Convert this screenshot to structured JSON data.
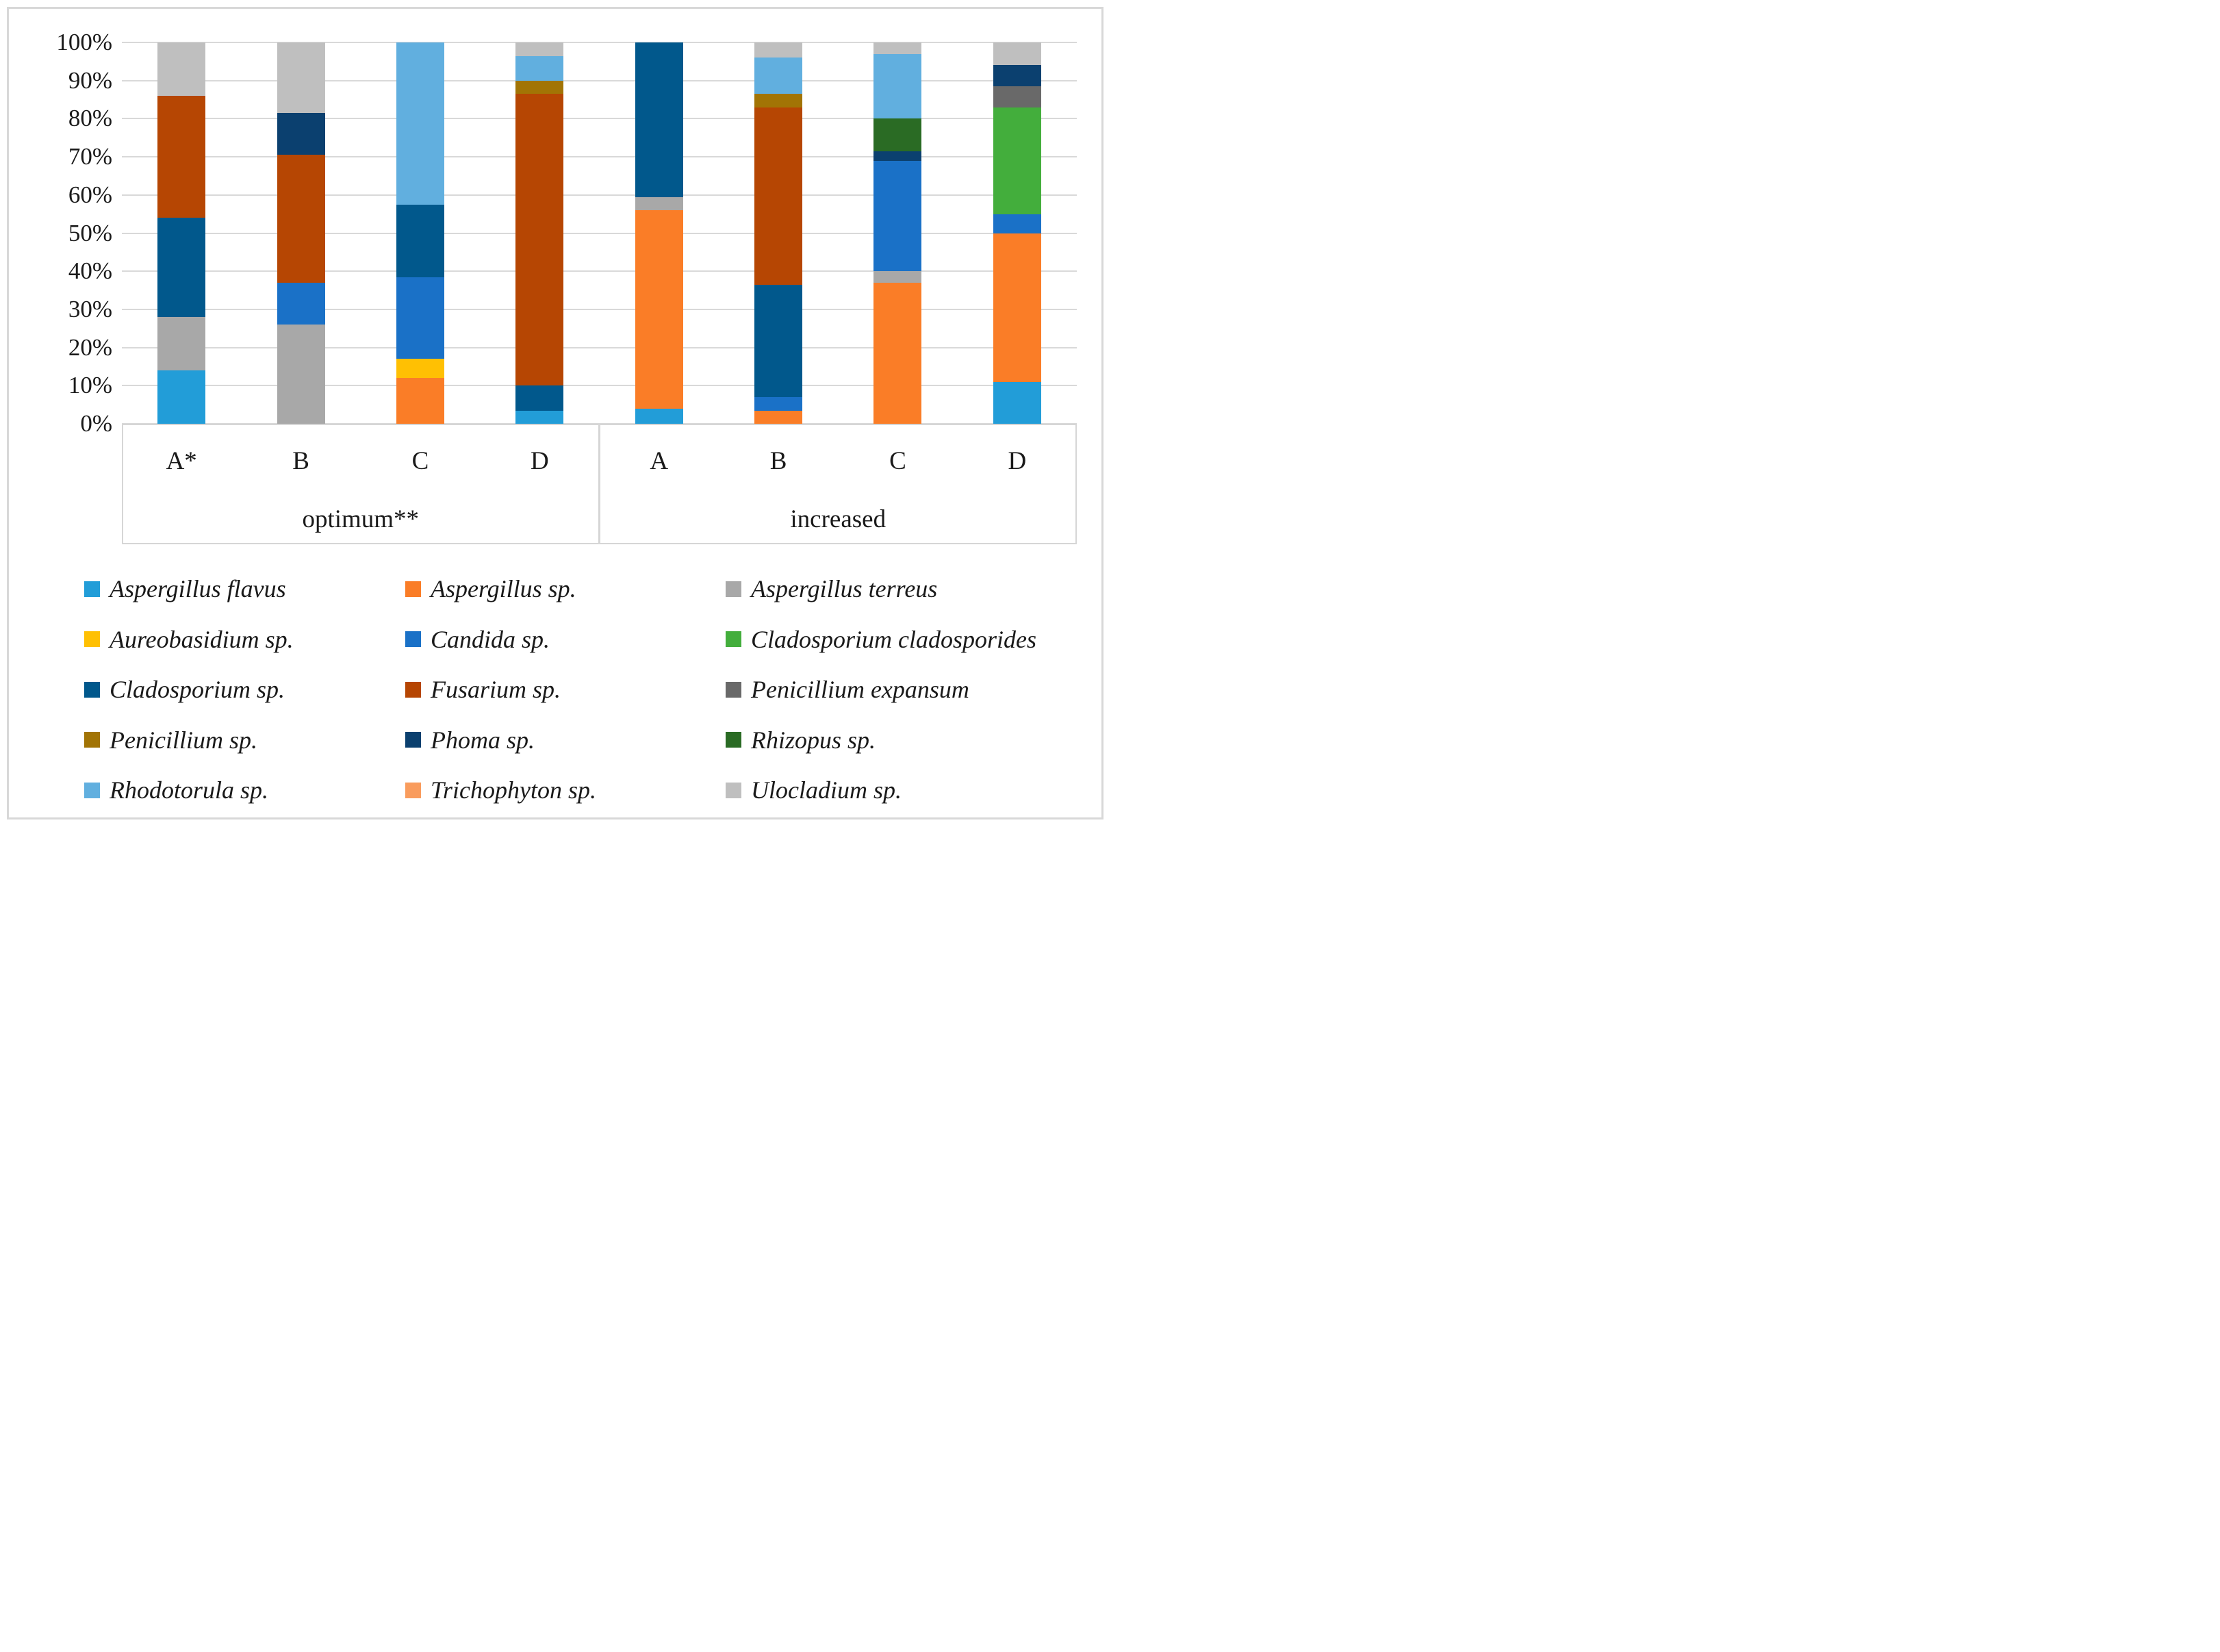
{
  "chart_data": {
    "type": "bar",
    "variant": "100%-stacked-column",
    "title": "",
    "xlabel": "",
    "ylabel": "",
    "ylim": [
      0,
      100
    ],
    "grid": true,
    "legend_position": "bottom",
    "y_ticks": [
      "100%",
      "90%",
      "80%",
      "70%",
      "60%",
      "50%",
      "40%",
      "30%",
      "20%",
      "10%",
      "0%"
    ],
    "groups": [
      {
        "label": "optimum**",
        "categories": [
          "A*",
          "B",
          "C",
          "D"
        ]
      },
      {
        "label": "increased",
        "categories": [
          "A",
          "B",
          "C",
          "D"
        ]
      }
    ],
    "series": [
      {
        "name": "Aspergillus flavus",
        "color": "#229DD8"
      },
      {
        "name": "Aspergillus sp.",
        "color": "#FA7D27"
      },
      {
        "name": "Aspergillus terreus",
        "color": "#A8A8A8"
      },
      {
        "name": "Aureobasidium sp.",
        "color": "#FFC003"
      },
      {
        "name": "Candida sp.",
        "color": "#1A71C7"
      },
      {
        "name": "Cladosporium cladosporides",
        "color": "#43AE3C"
      },
      {
        "name": "Cladosporium sp.",
        "color": "#01588C"
      },
      {
        "name": "Fusarium sp.",
        "color": "#B64603"
      },
      {
        "name": "Penicillium expansum",
        "color": "#696969"
      },
      {
        "name": "Penicillium sp.",
        "color": "#A27405"
      },
      {
        "name": "Phoma sp.",
        "color": "#0B406F"
      },
      {
        "name": "Rhizopus sp.",
        "color": "#2A6B24"
      },
      {
        "name": "Rhodotorula sp.",
        "color": "#61AFDF"
      },
      {
        "name": "Trichophyton sp.",
        "color": "#F99C5D"
      },
      {
        "name": "Ulocladium sp.",
        "color": "#BFBFBF"
      }
    ],
    "bars": [
      {
        "group": "optimum**",
        "category": "A*",
        "segments": {
          "Aspergillus flavus": 14,
          "Aspergillus terreus": 14,
          "Cladosporium sp.": 26,
          "Fusarium sp.": 32,
          "Ulocladium sp.": 14
        }
      },
      {
        "group": "optimum**",
        "category": "B",
        "segments": {
          "Aspergillus terreus": 26,
          "Candida sp.": 11,
          "Fusarium sp.": 33.5,
          "Phoma sp.": 11,
          "Ulocladium sp.": 18.5
        }
      },
      {
        "group": "optimum**",
        "category": "C",
        "segments": {
          "Aspergillus sp.": 12,
          "Aureobasidium sp.": 5,
          "Candida sp.": 21.5,
          "Cladosporium sp.": 19,
          "Rhodotorula sp.": 42.5
        }
      },
      {
        "group": "optimum**",
        "category": "D",
        "segments": {
          "Aspergillus flavus": 3.5,
          "Cladosporium sp.": 6.5,
          "Fusarium sp.": 76.5,
          "Penicillium sp.": 3.5,
          "Rhodotorula sp.": 6.5,
          "Ulocladium sp.": 3.5
        }
      },
      {
        "group": "increased",
        "category": "A",
        "segments": {
          "Aspergillus flavus": 4,
          "Aspergillus sp.": 52,
          "Aspergillus terreus": 3.5,
          "Cladosporium sp.": 40.5
        }
      },
      {
        "group": "increased",
        "category": "B",
        "segments": {
          "Aspergillus sp.": 3.5,
          "Candida sp.": 3.5,
          "Cladosporium sp.": 29.5,
          "Fusarium sp.": 46.5,
          "Penicillium sp.": 3.5,
          "Rhodotorula sp.": 9.5,
          "Ulocladium sp.": 4
        }
      },
      {
        "group": "increased",
        "category": "C",
        "segments": {
          "Aspergillus sp.": 37,
          "Aspergillus terreus": 3,
          "Candida sp.": 29,
          "Phoma sp.": 2.5,
          "Rhizopus sp.": 8.5,
          "Rhodotorula sp.": 17,
          "Ulocladium sp.": 3
        }
      },
      {
        "group": "increased",
        "category": "D",
        "segments": {
          "Aspergillus flavus": 11,
          "Aspergillus sp.": 39,
          "Candida sp.": 5,
          "Cladosporium cladosporides": 28,
          "Penicillium expansum": 5.5,
          "Phoma sp.": 5.5,
          "Ulocladium sp.": 6
        }
      }
    ]
  },
  "colors": {
    "gridline": "#D9D9D9",
    "frame_border": "#D8D8D8",
    "axis_box_border": "#D6D6D6",
    "text": "#1A1A1A",
    "background": "#FFFFFF"
  }
}
